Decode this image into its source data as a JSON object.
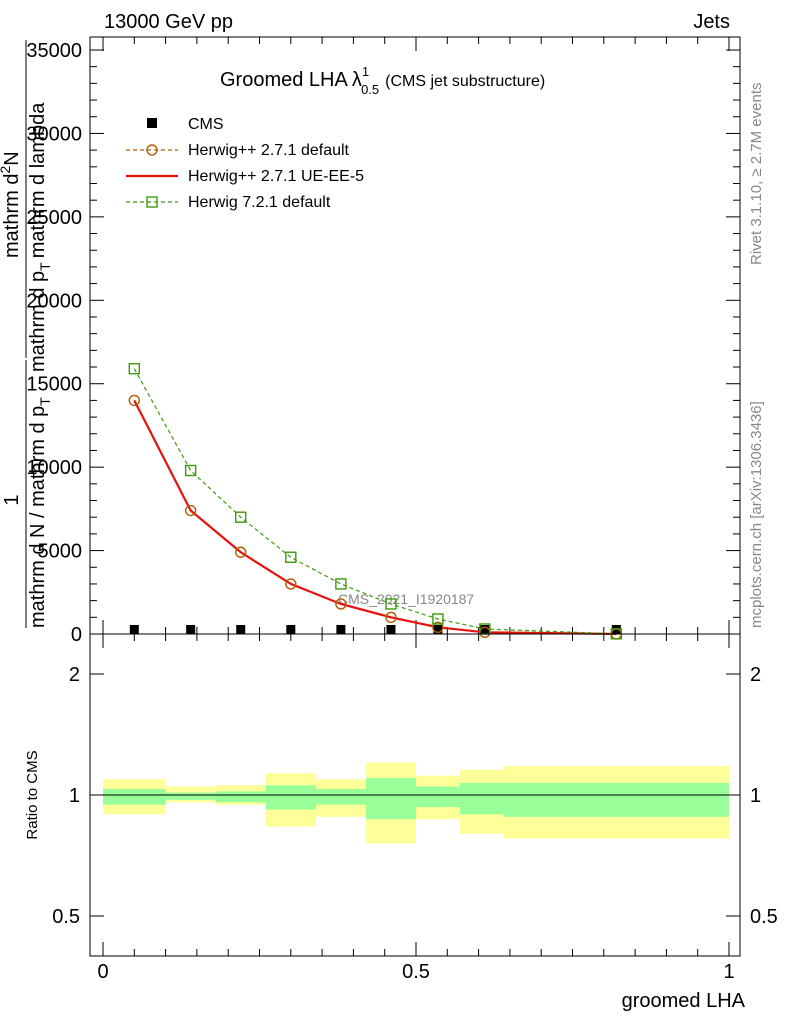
{
  "header": {
    "left": "13000 GeV pp",
    "right": "Jets"
  },
  "side": {
    "rivet": "Rivet 3.1.10, ≥ 2.7M events",
    "mcplots": "mcplots.cern.ch [arXiv:1306.3436]"
  },
  "chart_data": [
    {
      "type": "line",
      "title": {
        "main": "Groomed LHA",
        "lambda": "λ",
        "sup": "1",
        "sub": "0.5",
        "suffix": "(CMS jet substructure)"
      },
      "ylabel": {
        "num_one": "1",
        "den_one": "mathrm d N / mathrm d p",
        "den_one_sub": "T",
        "num_two": "mathrm d",
        "num_two_sup": "2",
        "num_two_tail": "N",
        "den_two": "mathrm d p",
        "den_two_sub": "T",
        "den_two_tail": "mathrm d lambda"
      },
      "watermark": "CMS_2021_I1920187",
      "xlim": [
        0,
        1
      ],
      "ylim": [
        0,
        35000
      ],
      "yticks": [
        0,
        5000,
        10000,
        15000,
        20000,
        25000,
        30000,
        35000
      ],
      "ytick_labels": [
        "0",
        "5000",
        "10000",
        "15000",
        "20000",
        "25000",
        "30000",
        "35000"
      ],
      "legend_position": "top-left",
      "series": [
        {
          "name": "CMS",
          "style": "black-square",
          "color": "#000000",
          "x": [
            0.05,
            0.14,
            0.22,
            0.3,
            0.38,
            0.46,
            0.535,
            0.61,
            0.82
          ],
          "y": [
            0.5,
            0.5,
            0.5,
            0.5,
            0.5,
            0.5,
            0.3,
            0.2,
            0.05
          ]
        },
        {
          "name": "Herwig++ 2.7.1 default",
          "style": "dashed-open-circle",
          "color": "#b35c00",
          "x": [
            0.05,
            0.14,
            0.22,
            0.3,
            0.38,
            0.46,
            0.535,
            0.61,
            0.82
          ],
          "y": [
            14000,
            7400,
            4900,
            3000,
            1800,
            1000,
            400,
            100,
            5
          ]
        },
        {
          "name": "Herwig++ 2.7.1 UE-EE-5",
          "style": "solid",
          "color": "#e8120c",
          "x": [
            0.05,
            0.14,
            0.22,
            0.3,
            0.38,
            0.46,
            0.535,
            0.61,
            0.82
          ],
          "y": [
            14000,
            7400,
            4900,
            3000,
            1800,
            1000,
            400,
            100,
            5
          ]
        },
        {
          "name": "Herwig 7.2.1 default",
          "style": "dashed-open-square",
          "color": "#3a9a0a",
          "x": [
            0.05,
            0.14,
            0.22,
            0.3,
            0.38,
            0.46,
            0.535,
            0.61,
            0.82
          ],
          "y": [
            15900,
            9800,
            7000,
            4600,
            3000,
            1800,
            900,
            300,
            10
          ]
        }
      ]
    },
    {
      "type": "area",
      "ylabel": "Ratio to CMS",
      "xlabel": "groomed LHA",
      "xlim": [
        0,
        1
      ],
      "ylim": [
        0.4,
        2.3
      ],
      "yticks": [
        0.5,
        1,
        2
      ],
      "ytick_labels": [
        "0.5",
        "1",
        "2"
      ],
      "xticks": [
        0,
        0.5,
        1
      ],
      "xtick_labels": [
        "0",
        "0.5",
        "1"
      ],
      "reference_line": 1,
      "bands": {
        "edges": [
          0,
          0.1,
          0.18,
          0.26,
          0.34,
          0.42,
          0.5,
          0.57,
          0.64,
          1.0
        ],
        "inner_low": [
          0.96,
          0.98,
          0.97,
          0.94,
          0.96,
          0.9,
          0.95,
          0.92,
          0.91
        ],
        "inner_high": [
          1.05,
          1.02,
          1.03,
          1.08,
          1.05,
          1.14,
          1.07,
          1.1,
          1.1
        ],
        "outer_low": [
          0.92,
          0.97,
          0.96,
          0.87,
          0.91,
          0.8,
          0.9,
          0.84,
          0.82
        ],
        "outer_high": [
          1.13,
          1.07,
          1.08,
          1.18,
          1.13,
          1.27,
          1.16,
          1.21,
          1.24
        ],
        "inner_color": "#99ff99",
        "outer_color": "#ffff99"
      }
    }
  ]
}
